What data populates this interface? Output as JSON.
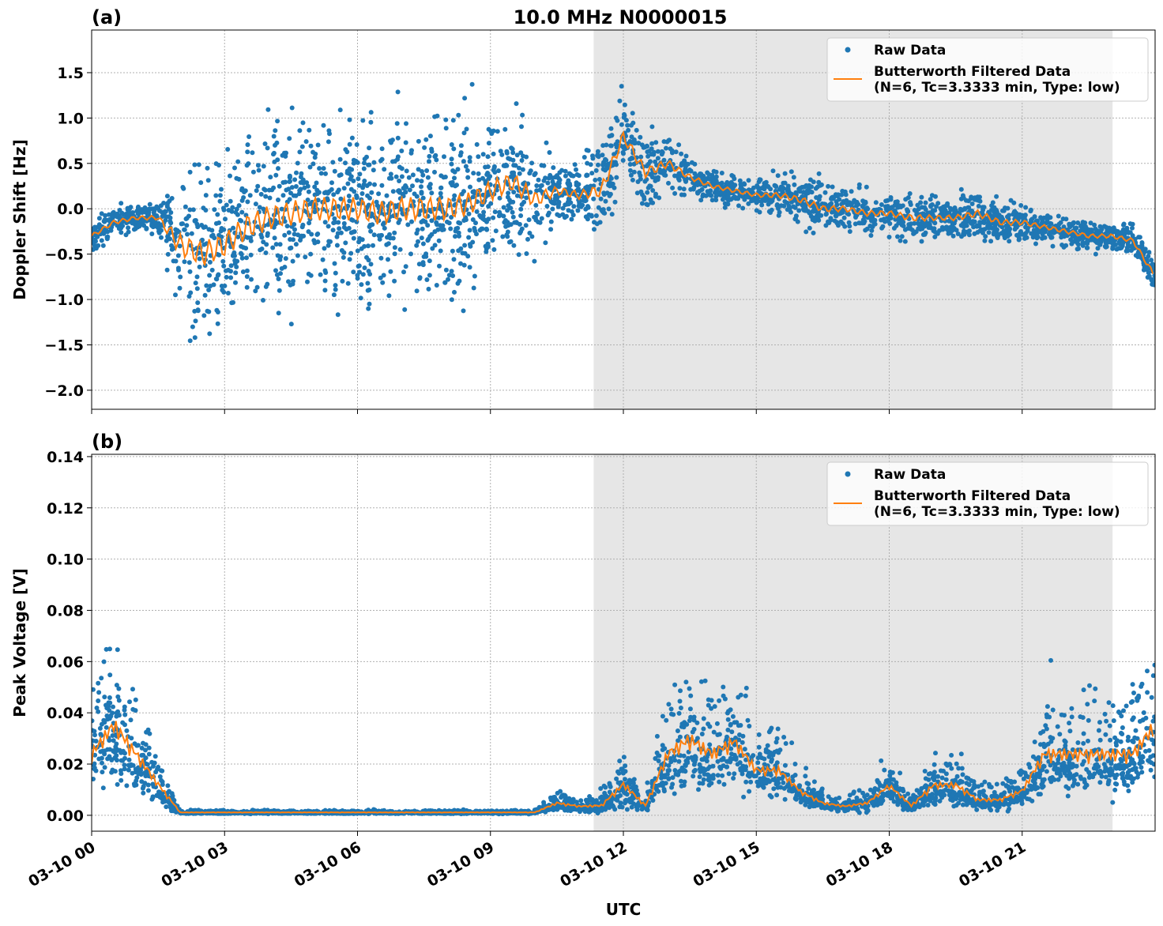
{
  "figure_title": "10.0 MHz N0000015",
  "x_axis_label": "UTC",
  "colors": {
    "raw": "#1f77b4",
    "filtered": "#ff7f0e",
    "shade": "#e6e6e6"
  },
  "chart_data": [
    {
      "panel_label": "(a)",
      "type": "scatter",
      "ylabel": "Doppler Shift [Hz]",
      "xlim_hours": [
        0,
        24
      ],
      "ylim": [
        -2.21,
        1.97
      ],
      "yticks": [
        -2.0,
        -1.5,
        -1.0,
        -0.5,
        0.0,
        0.5,
        1.0,
        1.5
      ],
      "ytick_labels": [
        "−2.0",
        "−1.5",
        "−1.0",
        "−0.5",
        "0.0",
        "0.5",
        "1.0",
        "1.5"
      ],
      "xticks_hours": [
        0,
        3,
        6,
        9,
        12,
        15,
        18,
        21
      ],
      "xtick_labels": [
        "03-10 00",
        "03-10 03",
        "03-10 06",
        "03-10 09",
        "03-10 12",
        "03-10 15",
        "03-10 18",
        "03-10 21"
      ],
      "grid": true,
      "shaded_interval_hours": [
        11.33,
        23.04
      ],
      "legend": {
        "placement": "top-right",
        "raw": "Raw Data",
        "filtered_line1": "Butterworth Filtered Data",
        "filtered_line2": "(N=6, Tc=3.3333 min, Type: low)"
      },
      "series_time_hours": [
        0,
        0.5,
        1,
        1.5,
        2,
        2.5,
        3,
        3.5,
        4,
        4.5,
        5,
        5.5,
        6,
        6.5,
        7,
        7.5,
        8,
        8.5,
        9,
        9.5,
        10,
        10.5,
        11,
        11.5,
        12,
        12.5,
        13,
        13.5,
        14,
        14.5,
        15,
        15.5,
        16,
        16.5,
        17,
        17.5,
        18,
        18.5,
        19,
        19.5,
        20,
        20.5,
        21,
        21.5,
        22,
        22.5,
        23,
        23.5,
        24
      ],
      "filtered": [
        -0.3,
        -0.15,
        -0.1,
        -0.1,
        -0.4,
        -0.5,
        -0.4,
        -0.2,
        -0.1,
        -0.05,
        0.0,
        0.0,
        0.0,
        -0.05,
        0.0,
        0.0,
        0.0,
        0.05,
        0.2,
        0.3,
        0.1,
        0.2,
        0.15,
        0.2,
        0.8,
        0.4,
        0.5,
        0.35,
        0.25,
        0.2,
        0.15,
        0.15,
        0.1,
        0.0,
        0.0,
        -0.05,
        -0.05,
        -0.1,
        -0.1,
        -0.1,
        -0.05,
        -0.15,
        -0.15,
        -0.2,
        -0.25,
        -0.3,
        -0.3,
        -0.35,
        -0.75
      ],
      "raw_spread": [
        0.15,
        0.15,
        0.15,
        0.15,
        0.8,
        0.9,
        0.9,
        0.9,
        0.9,
        0.9,
        0.85,
        0.85,
        0.85,
        0.85,
        0.85,
        0.85,
        0.85,
        0.85,
        0.75,
        0.7,
        0.6,
        0.3,
        0.3,
        0.5,
        0.4,
        0.4,
        0.3,
        0.2,
        0.15,
        0.15,
        0.15,
        0.2,
        0.25,
        0.25,
        0.2,
        0.2,
        0.2,
        0.25,
        0.2,
        0.2,
        0.25,
        0.2,
        0.2,
        0.15,
        0.15,
        0.15,
        0.15,
        0.15,
        0.2
      ]
    },
    {
      "panel_label": "(b)",
      "type": "scatter",
      "ylabel": "Peak Voltage [V]",
      "xlim_hours": [
        0,
        24
      ],
      "ylim": [
        -0.0062,
        0.1409
      ],
      "yticks": [
        0.0,
        0.02,
        0.04,
        0.06,
        0.08,
        0.1,
        0.12,
        0.14
      ],
      "ytick_labels": [
        "0.00",
        "0.02",
        "0.04",
        "0.06",
        "0.08",
        "0.10",
        "0.12",
        "0.14"
      ],
      "xticks_hours": [
        0,
        3,
        6,
        9,
        12,
        15,
        18,
        21
      ],
      "xtick_labels": [
        "03-10 00",
        "03-10 03",
        "03-10 06",
        "03-10 09",
        "03-10 12",
        "03-10 15",
        "03-10 18",
        "03-10 21"
      ],
      "grid": true,
      "shaded_interval_hours": [
        11.33,
        23.04
      ],
      "legend": {
        "placement": "top-right",
        "raw": "Raw Data",
        "filtered_line1": "Butterworth Filtered Data",
        "filtered_line2": "(N=6, Tc=3.3333 min, Type: low)"
      },
      "series_time_hours": [
        0,
        0.5,
        1,
        1.5,
        2,
        2.5,
        3,
        3.5,
        4,
        4.5,
        5,
        5.5,
        6,
        6.5,
        7,
        7.5,
        8,
        8.5,
        9,
        9.5,
        10,
        10.5,
        11,
        11.5,
        12,
        12.5,
        13,
        13.5,
        14,
        14.5,
        15,
        15.5,
        16,
        16.5,
        17,
        17.5,
        18,
        18.5,
        19,
        19.5,
        20,
        20.5,
        21,
        21.5,
        22,
        22.5,
        23,
        23.5,
        24
      ],
      "filtered": [
        0.02,
        0.03,
        0.02,
        0.01,
        0.001,
        0.001,
        0.001,
        0.001,
        0.001,
        0.001,
        0.001,
        0.001,
        0.001,
        0.001,
        0.001,
        0.001,
        0.001,
        0.001,
        0.001,
        0.001,
        0.001,
        0.004,
        0.003,
        0.003,
        0.01,
        0.003,
        0.02,
        0.025,
        0.02,
        0.025,
        0.015,
        0.015,
        0.008,
        0.004,
        0.003,
        0.004,
        0.01,
        0.003,
        0.01,
        0.01,
        0.005,
        0.005,
        0.008,
        0.02,
        0.02,
        0.02,
        0.02,
        0.02,
        0.03
      ],
      "raw_spread": [
        0.015,
        0.02,
        0.015,
        0.008,
        0.0005,
        0.0005,
        0.0005,
        0.0005,
        0.0005,
        0.0005,
        0.0005,
        0.0005,
        0.0005,
        0.0005,
        0.0005,
        0.0005,
        0.0005,
        0.0005,
        0.0005,
        0.0005,
        0.0005,
        0.003,
        0.002,
        0.003,
        0.008,
        0.003,
        0.015,
        0.018,
        0.015,
        0.015,
        0.01,
        0.01,
        0.005,
        0.003,
        0.002,
        0.003,
        0.006,
        0.003,
        0.007,
        0.007,
        0.004,
        0.004,
        0.006,
        0.015,
        0.015,
        0.015,
        0.015,
        0.015,
        0.02
      ]
    }
  ]
}
